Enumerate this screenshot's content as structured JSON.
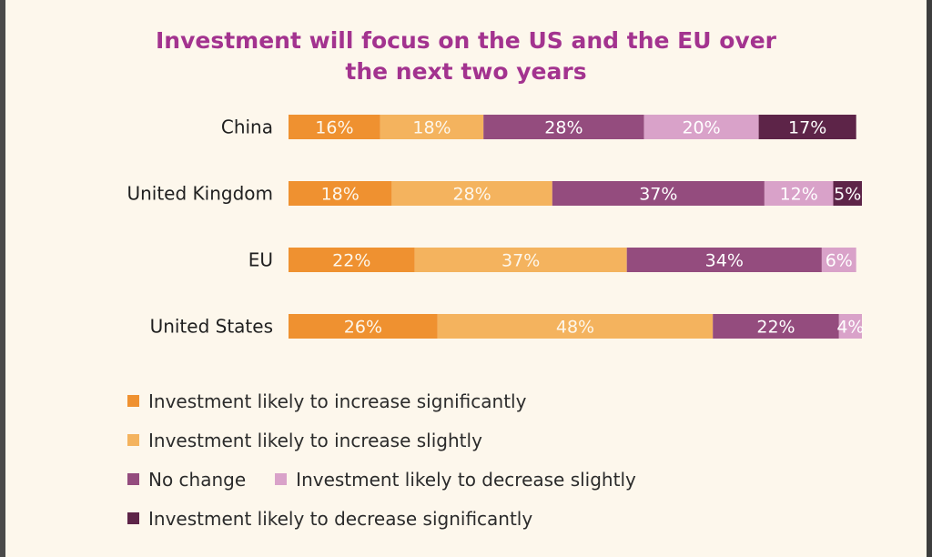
{
  "chart_data": {
    "type": "bar",
    "orientation": "horizontal",
    "stacked": true,
    "title": "Investment will focus on the US and the EU over the next two years",
    "categories": [
      "China",
      "United Kingdom",
      "EU",
      "United States"
    ],
    "series": [
      {
        "name": "Investment likely to increase significantly",
        "color": "#ef9130",
        "values": [
          16,
          18,
          22,
          26
        ]
      },
      {
        "name": "Investment likely to increase slightly",
        "color": "#f4b35e",
        "values": [
          18,
          28,
          37,
          48
        ]
      },
      {
        "name": "No change",
        "color": "#944c7e",
        "values": [
          28,
          37,
          34,
          22
        ]
      },
      {
        "name": "Investment likely to decrease slightly",
        "color": "#d9a2c9",
        "values": [
          20,
          12,
          6,
          4
        ]
      },
      {
        "name": "Investment likely to decrease significantly",
        "color": "#5d2448",
        "values": [
          17,
          5,
          0,
          0
        ]
      }
    ],
    "value_labels": [
      [
        "16%",
        "18%",
        "28%",
        "20%",
        "17%"
      ],
      [
        "18%",
        "28%",
        "37%",
        "12%",
        "5%"
      ],
      [
        "22%",
        "37%",
        "34%",
        "6%",
        ""
      ],
      [
        "26%",
        "48%",
        "22%",
        "4%",
        ""
      ]
    ],
    "xlim": [
      0,
      100
    ],
    "grid": false,
    "legend_position": "bottom-left"
  }
}
